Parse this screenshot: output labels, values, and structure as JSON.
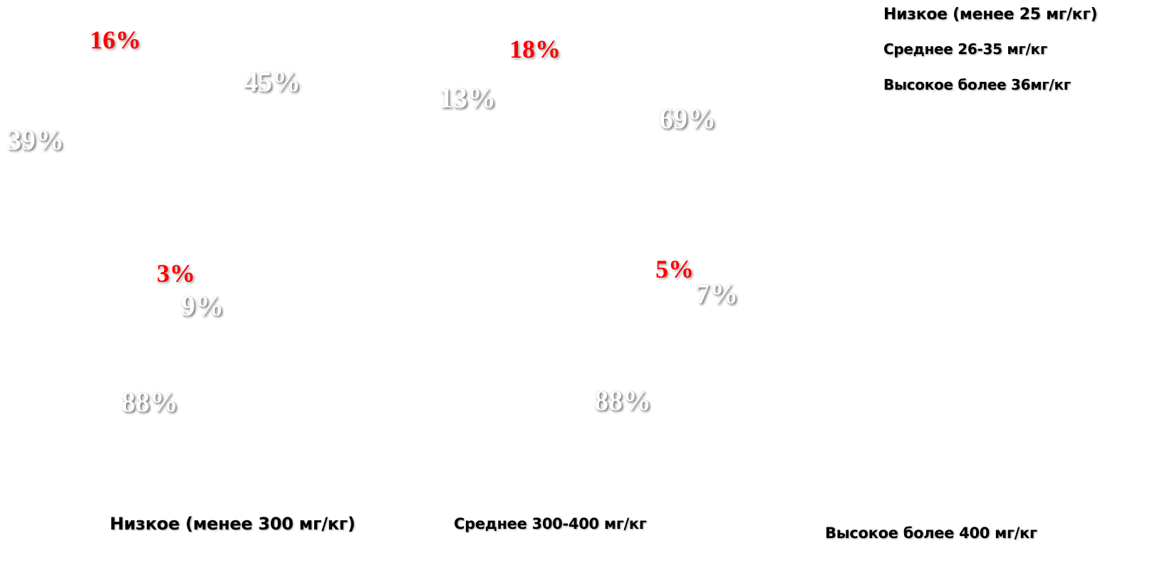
{
  "chart_data": {
    "type": "pie",
    "legend_position": "top-right",
    "legend": [
      "Низкое (менее 25 мг/кг)",
      "Среднее 26-35 мг/кг",
      "Высокое более 36мг/кг"
    ],
    "series_colors": {
      "low": "#ffffff",
      "mid": "#ffffff",
      "high": "#ff0000"
    },
    "pies": [
      {
        "category": "Низкое (менее 300 мг/кг)",
        "slices": [
          {
            "legend_index": 0,
            "value": 39,
            "label": "39%"
          },
          {
            "legend_index": 1,
            "value": 45,
            "label": "45%"
          },
          {
            "legend_index": 2,
            "value": 16,
            "label": "16%"
          }
        ]
      },
      {
        "category": "Среднее 300-400 мг/кг",
        "slices": [
          {
            "legend_index": 0,
            "value": 13,
            "label": "13%"
          },
          {
            "legend_index": 1,
            "value": 69,
            "label": "69%"
          },
          {
            "legend_index": 2,
            "value": 18,
            "label": "18%"
          }
        ]
      },
      {
        "category": "Низкое (менее 300 мг/кг)",
        "slices": [
          {
            "legend_index": 0,
            "value": 88,
            "label": "88%"
          },
          {
            "legend_index": 1,
            "value": 9,
            "label": "9%"
          },
          {
            "legend_index": 2,
            "value": 3,
            "label": "3%"
          }
        ]
      },
      {
        "category": "Высокое более 400 мг/кг",
        "slices": [
          {
            "legend_index": 0,
            "value": 88,
            "label": "88%"
          },
          {
            "legend_index": 1,
            "value": 7,
            "label": "7%"
          },
          {
            "legend_index": 2,
            "value": 5,
            "label": "5%"
          }
        ]
      }
    ],
    "category_labels": [
      "Низкое (менее 300 мг/кг)",
      "Среднее 300-400 мг/кг",
      "Высокое более 400 мг/кг"
    ]
  }
}
